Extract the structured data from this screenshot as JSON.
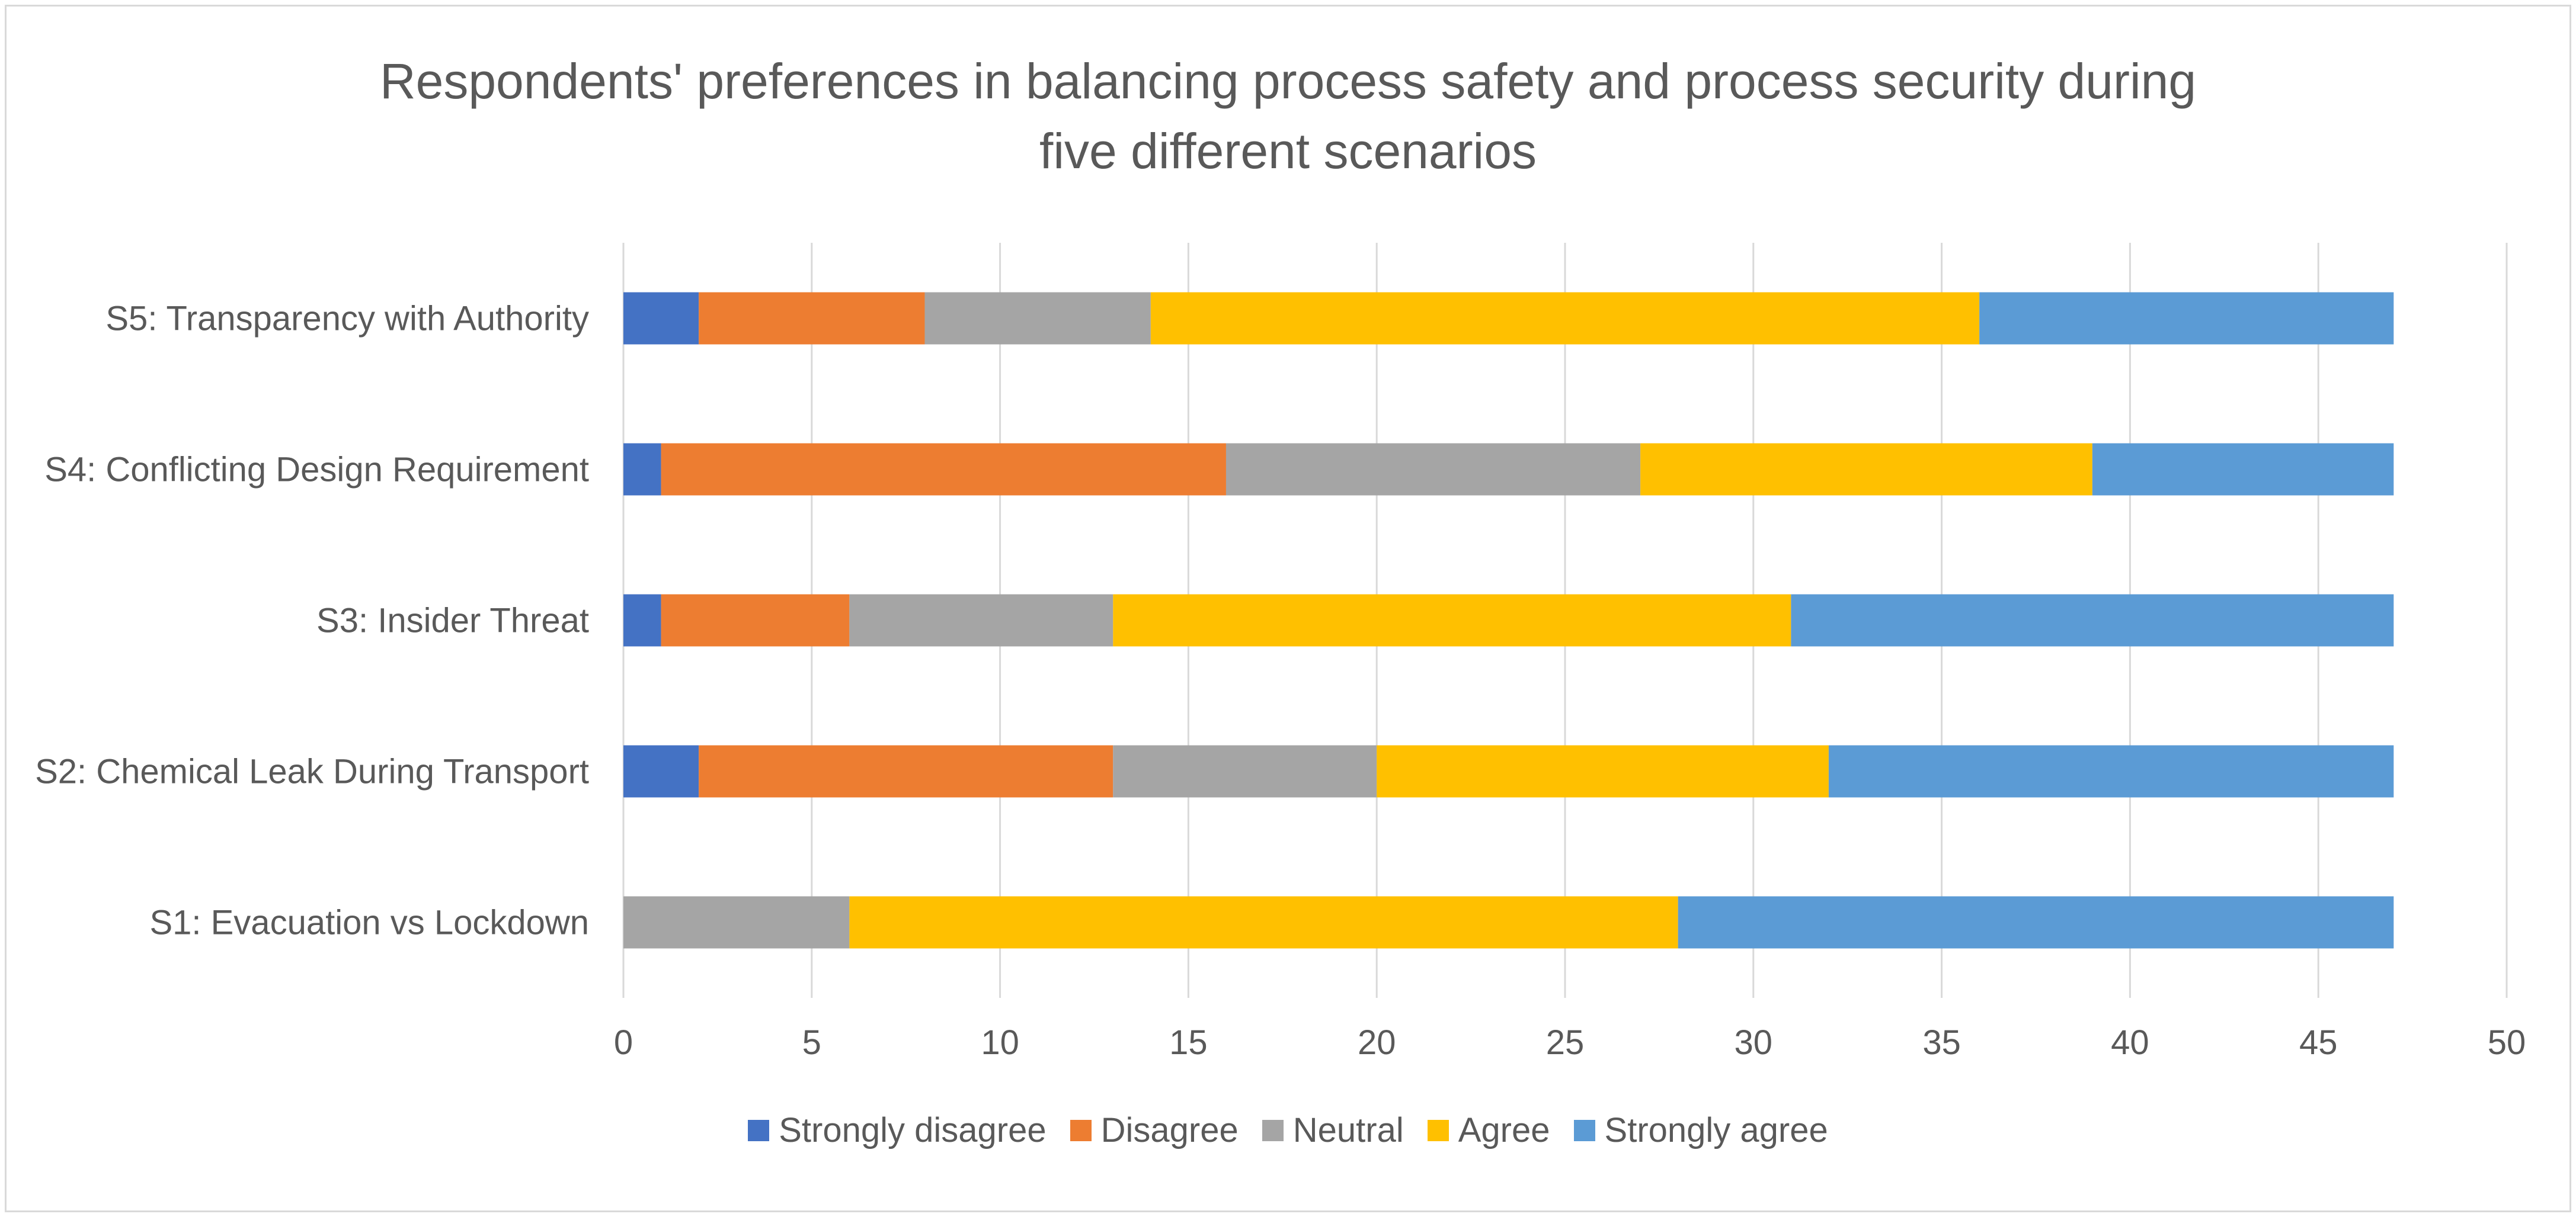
{
  "chart_data": {
    "type": "bar",
    "orientation": "horizontal",
    "stacked": true,
    "title_lines": [
      "Respondents' preferences in balancing process safety and process security during",
      "five different scenarios"
    ],
    "categories": [
      "S1: Evacuation vs Lockdown",
      "S2: Chemical Leak During Transport",
      "S3: Insider Threat",
      "S4: Conflicting Design Requirement",
      "S5: Transparency with Authority"
    ],
    "series": [
      {
        "name": "Strongly disagree",
        "color": "#4472c4",
        "values": [
          0,
          2,
          1,
          1,
          2
        ]
      },
      {
        "name": "Disagree",
        "color": "#ed7d31",
        "values": [
          0,
          11,
          5,
          15,
          6
        ]
      },
      {
        "name": "Neutral",
        "color": "#a5a5a5",
        "values": [
          6,
          7,
          7,
          11,
          6
        ]
      },
      {
        "name": "Agree",
        "color": "#ffc000",
        "values": [
          22,
          12,
          18,
          12,
          22
        ]
      },
      {
        "name": "Strongly agree",
        "color": "#5b9bd5",
        "values": [
          19,
          15,
          16,
          8,
          11
        ]
      }
    ],
    "xlim": [
      0,
      50
    ],
    "xticks": [
      "0",
      "5",
      "10",
      "15",
      "20",
      "25",
      "30",
      "35",
      "40",
      "45",
      "50"
    ],
    "xlabel": "",
    "ylabel": "",
    "grid": true,
    "legend_position": "bottom"
  }
}
